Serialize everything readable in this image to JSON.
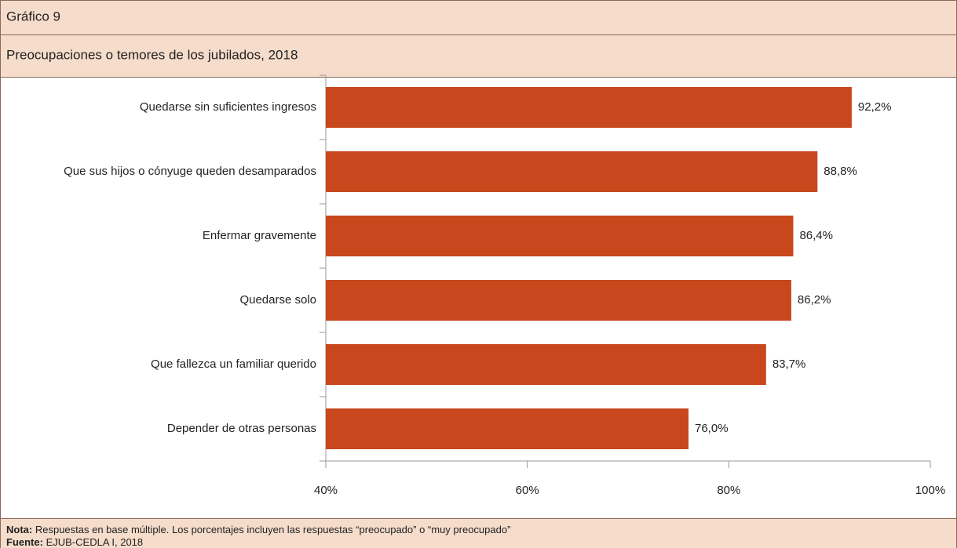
{
  "chart_data": {
    "type": "barh",
    "label": "Gráfico 9",
    "title": "Preocupaciones o temores de los jubilados, 2018",
    "categories": [
      "Quedarse sin suficientes ingresos",
      "Que sus hijos o cónyuge queden desamparados",
      "Enfermar gravemente",
      "Quedarse solo",
      "Que fallezca un familiar querido",
      "Depender de otras personas"
    ],
    "values": [
      92.2,
      88.8,
      86.4,
      86.2,
      83.7,
      76.0
    ],
    "value_labels": [
      "92,2%",
      "88,8%",
      "86,4%",
      "86,2%",
      "83,7%",
      "76,0%"
    ],
    "color": "#c8471c",
    "xlim": [
      40,
      100
    ],
    "xticks": [
      {
        "value": 40,
        "label": "40%"
      },
      {
        "value": 60,
        "label": "60%"
      },
      {
        "value": 80,
        "label": "80%"
      },
      {
        "value": 100,
        "label": "100%"
      }
    ]
  },
  "footer": {
    "note_label": "Nota:",
    "note": "Respuestas en base múltiple. Los porcentajes incluyen las respuestas “preocupado” o “muy preocupado”",
    "source_label": "Fuente:",
    "source": "EJUB-CEDLA I, 2018"
  }
}
